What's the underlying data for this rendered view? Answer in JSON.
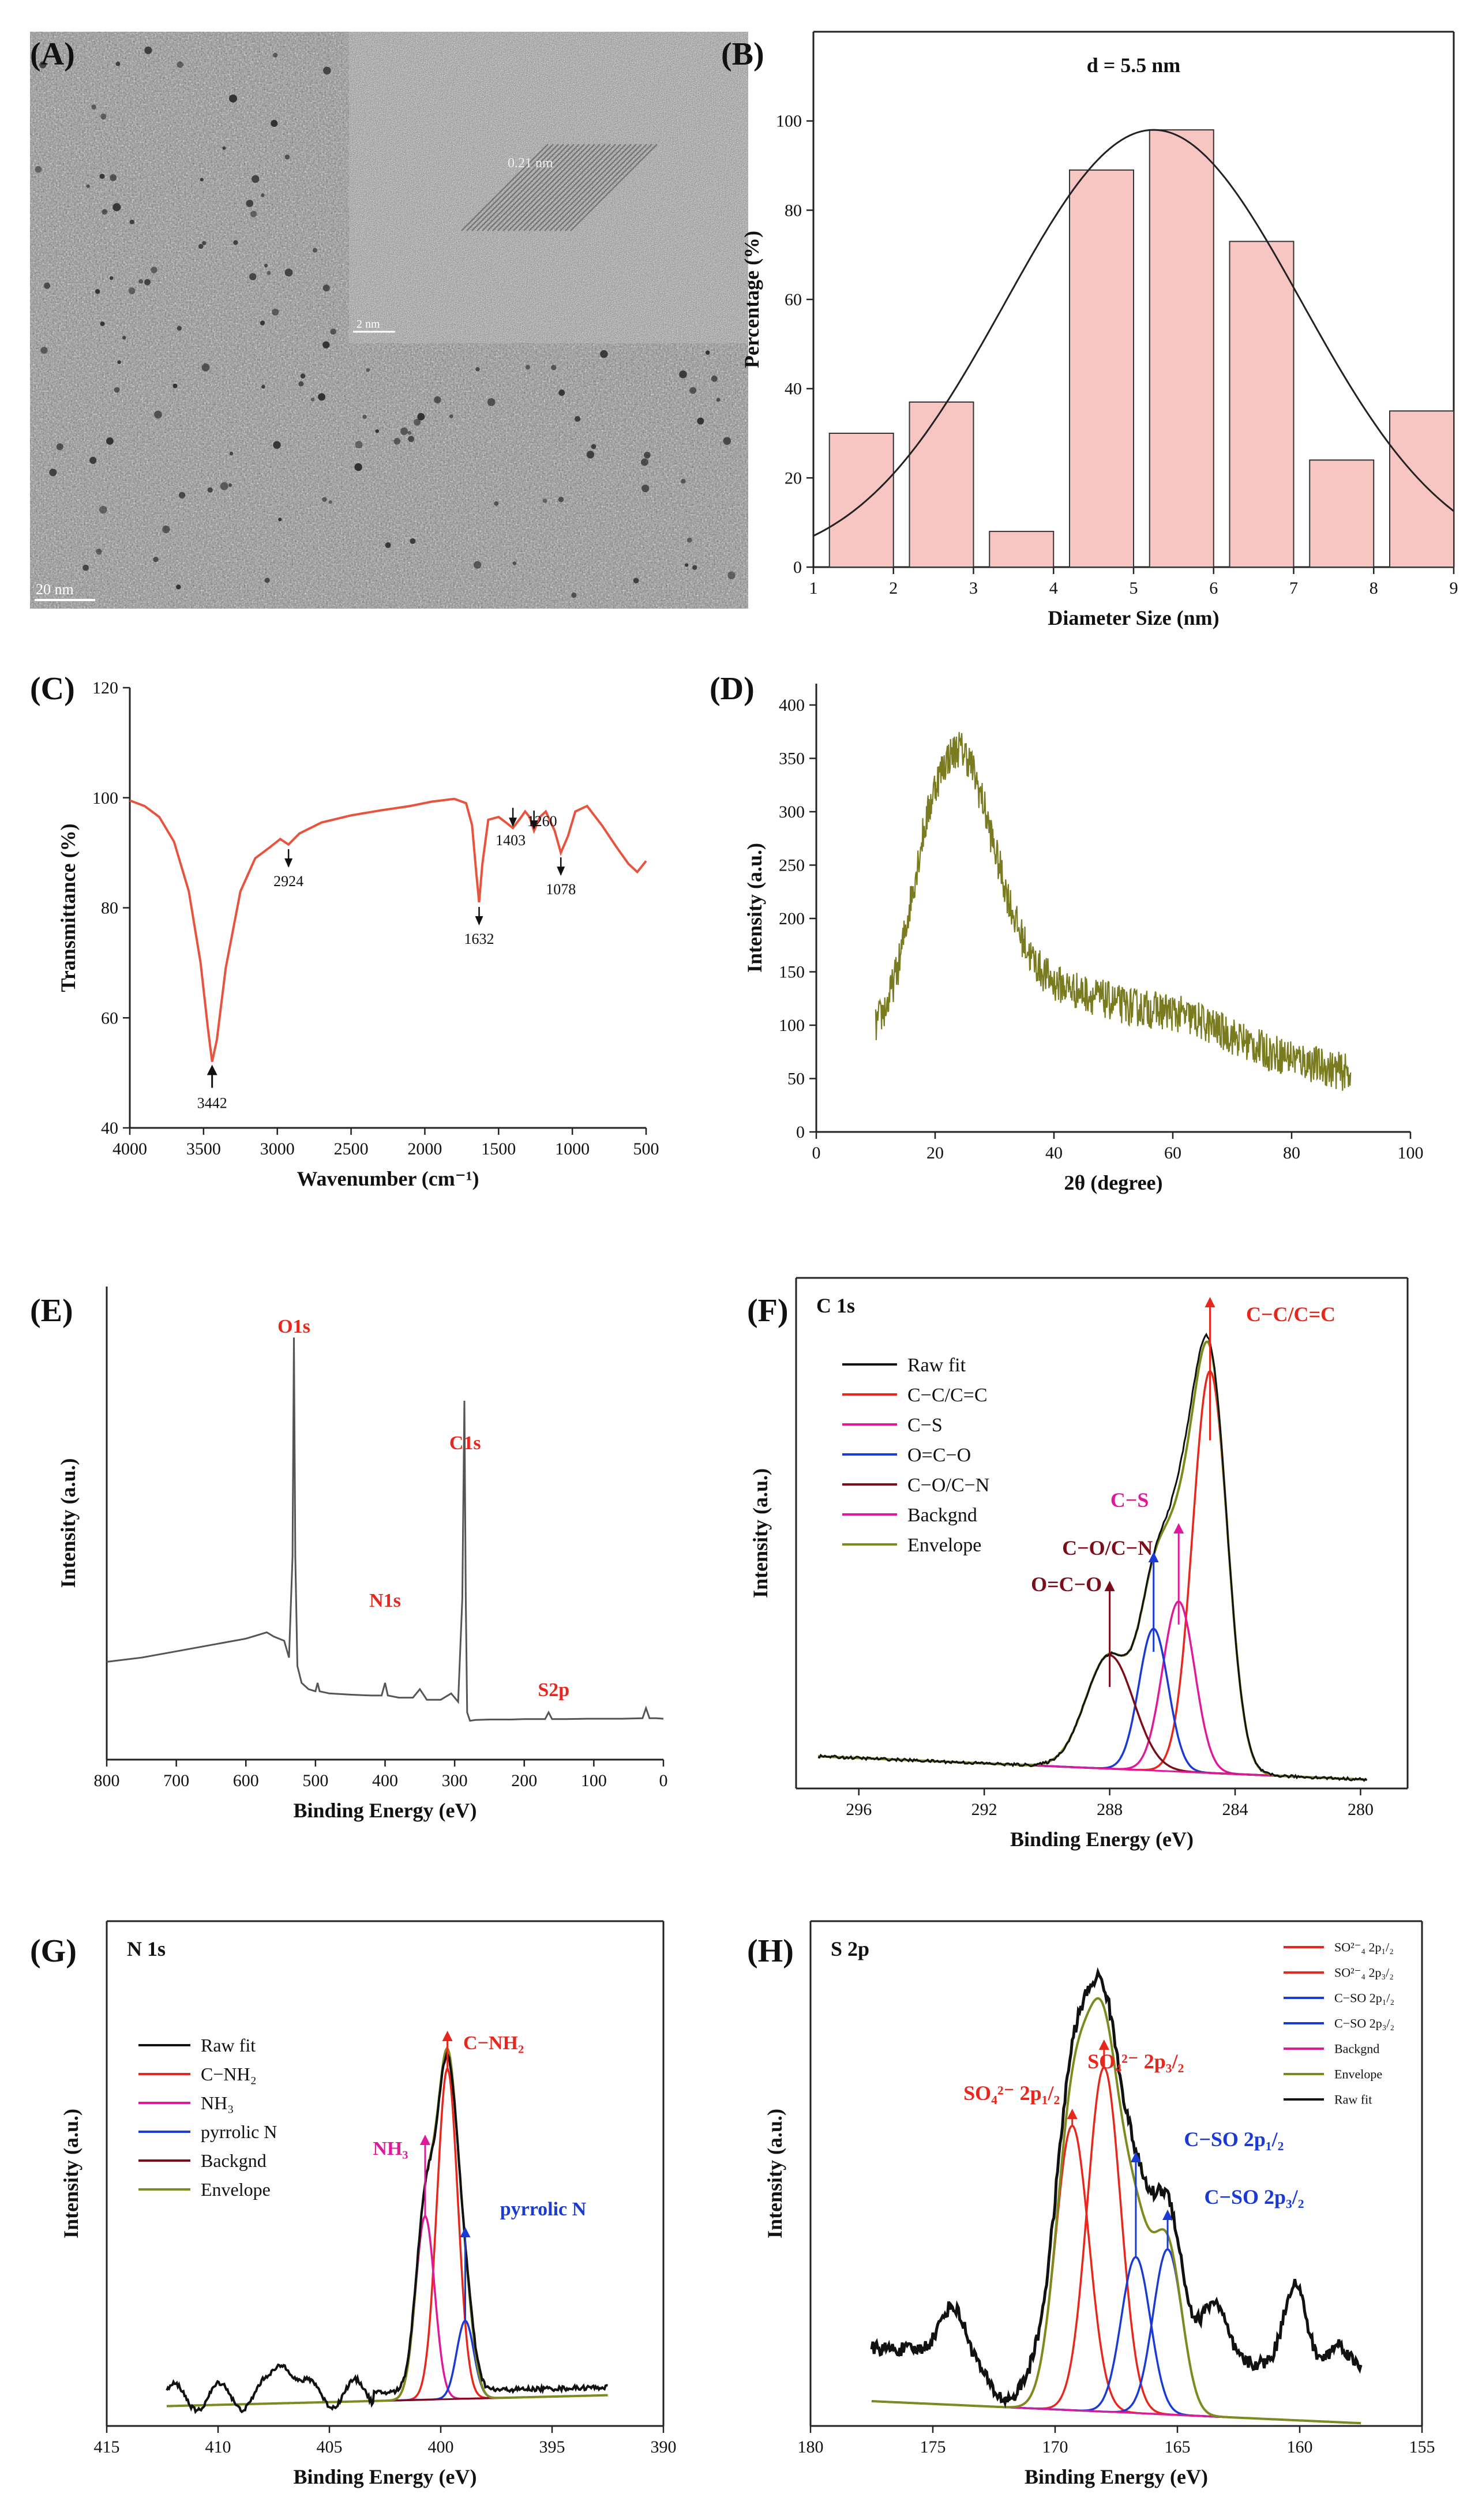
{
  "panel_labels": [
    "(A)",
    "(B)",
    "(C)",
    "(D)",
    "(E)",
    "(F)",
    "(G)",
    "(H)"
  ],
  "tem": {
    "scale_bar": "20 nm",
    "inset_scale": "2 nm",
    "lattice_label": "0.21 nm"
  },
  "colors": {
    "pink_bar": "#f7c6c3",
    "bar_edge": "#333333",
    "ftir": "#e8533d",
    "xrd": "#7a7a1e",
    "xps_survey": "#555555",
    "red": "#e8261c",
    "magenta": "#e0189a",
    "blue": "#1a3ad6",
    "darkred": "#7b0c18",
    "olive": "#7f8a1e",
    "black": "#111111"
  },
  "chart_data": [
    {
      "panel": "B",
      "type": "bar",
      "title": "d = 5.5 nm",
      "xlabel": "Diameter Size  (nm)",
      "ylabel": "Percentage  (%)",
      "xlim": [
        1,
        9
      ],
      "ylim": [
        0,
        120
      ],
      "xticks": [
        1,
        2,
        3,
        4,
        5,
        6,
        7,
        8,
        9
      ],
      "yticks": [
        0,
        20,
        40,
        60,
        80,
        100
      ],
      "bars": [
        {
          "x0": 1.2,
          "x1": 2.0,
          "value": 30
        },
        {
          "x0": 2.2,
          "x1": 3.0,
          "value": 37
        },
        {
          "x0": 3.2,
          "x1": 4.0,
          "value": 8
        },
        {
          "x0": 4.2,
          "x1": 5.0,
          "value": 89
        },
        {
          "x0": 5.2,
          "x1": 6.0,
          "value": 98
        },
        {
          "x0": 6.2,
          "x1": 7.0,
          "value": 73
        },
        {
          "x0": 7.2,
          "x1": 8.0,
          "value": 24
        },
        {
          "x0": 8.2,
          "x1": 9.0,
          "value": 35
        }
      ],
      "fit": {
        "center": 5.25,
        "amplitude": 98,
        "sigma": 1.85
      }
    },
    {
      "panel": "C",
      "type": "line",
      "xlabel": "Wavenumber (cm⁻¹)",
      "ylabel": "Transmittance (%)",
      "xlim": [
        4000,
        500
      ],
      "ylim": [
        40,
        120
      ],
      "xticks": [
        4000,
        3500,
        3000,
        2500,
        2000,
        1500,
        1000,
        500
      ],
      "yticks": [
        40,
        60,
        80,
        100,
        120
      ],
      "x": [
        4000,
        3900,
        3800,
        3700,
        3600,
        3520,
        3470,
        3442,
        3410,
        3350,
        3250,
        3150,
        3050,
        2980,
        2924,
        2850,
        2700,
        2500,
        2300,
        2100,
        1950,
        1800,
        1720,
        1680,
        1650,
        1632,
        1610,
        1570,
        1500,
        1450,
        1403,
        1360,
        1320,
        1290,
        1260,
        1220,
        1180,
        1120,
        1078,
        1030,
        980,
        900,
        800,
        700,
        620,
        560,
        500
      ],
      "y": [
        99.5,
        98.5,
        96.5,
        92,
        83,
        70,
        58,
        52,
        56,
        69,
        83,
        89,
        91,
        92.5,
        91.5,
        93.5,
        95.5,
        96.8,
        97.7,
        98.5,
        99.3,
        99.8,
        99,
        95,
        86,
        81,
        88,
        96,
        96.5,
        95.5,
        94.5,
        96,
        97.5,
        96.5,
        94,
        96.5,
        97.5,
        94,
        90,
        93,
        97.5,
        98.5,
        95,
        91,
        88,
        86.5,
        88.5
      ],
      "annotations": [
        {
          "label": "3442",
          "x": 3442,
          "y": 52
        },
        {
          "label": "2924",
          "x": 2924,
          "y": 91.5
        },
        {
          "label": "1632",
          "x": 1632,
          "y": 81
        },
        {
          "label": "1403",
          "x": 1403,
          "y": 94.5
        },
        {
          "label": "1260",
          "x": 1260,
          "y": 94
        },
        {
          "label": "1078",
          "x": 1078,
          "y": 90
        }
      ]
    },
    {
      "panel": "D",
      "type": "line",
      "xlabel": "2θ (degree)",
      "ylabel": "Intensity (a.u.)",
      "xlim": [
        0,
        100
      ],
      "ylim": [
        0,
        420
      ],
      "xticks": [
        0,
        20,
        40,
        60,
        80,
        100
      ],
      "yticks": [
        0,
        50,
        100,
        150,
        200,
        250,
        300,
        350,
        400
      ],
      "x": [
        10,
        12,
        14,
        16,
        18,
        20,
        22,
        24,
        25,
        26,
        28,
        30,
        32,
        34,
        36,
        38,
        40,
        44,
        48,
        52,
        56,
        60,
        64,
        68,
        72,
        76,
        80,
        84,
        88,
        90
      ],
      "y": [
        100,
        120,
        160,
        220,
        280,
        325,
        350,
        360,
        355,
        345,
        310,
        265,
        225,
        190,
        165,
        150,
        140,
        132,
        125,
        118,
        115,
        112,
        105,
        95,
        85,
        75,
        70,
        63,
        57,
        55
      ],
      "noise_amplitude": 18
    },
    {
      "panel": "E",
      "type": "line",
      "xlabel": "Binding Energy (eV)",
      "ylabel": "Intensity (a.u.)",
      "xlim": [
        800,
        0
      ],
      "ylim": [
        0,
        1
      ],
      "xticks": [
        800,
        700,
        600,
        500,
        400,
        300,
        200,
        100,
        0
      ],
      "x": [
        800,
        750,
        700,
        650,
        600,
        570,
        560,
        545,
        538,
        533,
        531,
        529,
        526,
        520,
        510,
        500,
        497,
        494,
        480,
        450,
        420,
        405,
        400,
        396,
        380,
        360,
        350,
        340,
        320,
        305,
        295,
        289,
        286,
        284,
        282,
        278,
        270,
        250,
        220,
        200,
        170,
        165,
        160,
        140,
        110,
        90,
        60,
        30,
        25,
        20,
        10,
        0
      ],
      "y": [
        0.15,
        0.16,
        0.175,
        0.19,
        0.205,
        0.22,
        0.21,
        0.2,
        0.16,
        0.4,
        0.92,
        0.4,
        0.14,
        0.1,
        0.085,
        0.08,
        0.1,
        0.08,
        0.075,
        0.072,
        0.07,
        0.07,
        0.1,
        0.07,
        0.065,
        0.065,
        0.085,
        0.06,
        0.06,
        0.075,
        0.055,
        0.3,
        0.77,
        0.3,
        0.03,
        0.01,
        0.012,
        0.013,
        0.013,
        0.014,
        0.014,
        0.03,
        0.014,
        0.014,
        0.015,
        0.015,
        0.015,
        0.016,
        0.04,
        0.016,
        0.016,
        0.015
      ],
      "annotations": [
        {
          "label": "O1s",
          "x": 531
        },
        {
          "label": "C1s",
          "x": 285
        },
        {
          "label": "N1s",
          "x": 400
        },
        {
          "label": "S2p",
          "x": 166
        }
      ]
    },
    {
      "panel": "F",
      "type": "line",
      "title": "C 1s",
      "xlabel": "Binding Energy (eV)",
      "ylabel": "Intensity (a.u.)",
      "xlim": [
        298,
        278.5
      ],
      "ylim": [
        0,
        1.08
      ],
      "xticks": [
        296,
        292,
        288,
        284,
        280
      ],
      "legend": [
        "Raw fit",
        "C−C/C=C",
        "C−S",
        "O=C−O",
        "C−O/C−N",
        "Backgnd",
        "Envelope"
      ],
      "peaks": [
        {
          "label": "C−C/C=C",
          "center": 284.8,
          "height": 0.85,
          "fwhm": 1.3
        },
        {
          "label": "C−S",
          "center": 285.8,
          "height": 0.36,
          "fwhm": 1.2
        },
        {
          "label": "C−O/C−N",
          "center": 286.6,
          "height": 0.3,
          "fwhm": 1.1
        },
        {
          "label": "O=C−O",
          "center": 288.0,
          "height": 0.24,
          "fwhm": 1.8
        }
      ],
      "background": {
        "start": 0.07,
        "end": 0.015
      },
      "annotations": [
        "C−C/C=C",
        "C−S",
        "C−O/C−N",
        "O=C−O"
      ]
    },
    {
      "panel": "G",
      "type": "line",
      "title": "N 1s",
      "xlabel": "Binding Energy (eV)",
      "ylabel": "Intensity (a.u.)",
      "xlim": [
        415,
        390
      ],
      "ylim": [
        0,
        1.1
      ],
      "xticks": [
        415,
        410,
        405,
        400,
        395,
        390
      ],
      "legend": [
        "Raw fit",
        "C−NH₂",
        "NH₃",
        "pyrrolic N",
        "Backgnd",
        "Envelope"
      ],
      "peaks": [
        {
          "label": "C−NH₂",
          "center": 399.7,
          "height": 0.72,
          "fwhm": 1.1
        },
        {
          "label": "NH₃",
          "center": 400.7,
          "height": 0.4,
          "fwhm": 1.0
        },
        {
          "label": "pyrrolic N",
          "center": 398.9,
          "height": 0.17,
          "fwhm": 0.9
        }
      ],
      "background": {
        "start": 0.04,
        "end": 0.07
      },
      "annotations": [
        "C−NH₂",
        "NH₃",
        "pyrrolic N"
      ]
    },
    {
      "panel": "H",
      "type": "line",
      "title": "S 2p",
      "xlabel": "Binding Energy (eV)",
      "ylabel": "Intensity (a.u.)",
      "xlim": [
        180,
        155
      ],
      "ylim": [
        0,
        1.1
      ],
      "xticks": [
        180,
        175,
        170,
        165,
        160,
        155
      ],
      "legend": [
        "SO²⁻₄ 2p₁/₂",
        "SO²⁻₄ 2p₃/₂",
        "C−SO 2p₁/₂",
        "C−SO 2p₃/₂",
        "Backgnd",
        "Envelope",
        "Raw fit"
      ],
      "peaks": [
        {
          "label": "SO₄²⁻ 2p₁/₂",
          "center": 169.3,
          "height": 0.62,
          "fwhm": 1.6
        },
        {
          "label": "SO₄²⁻ 2p₃/₂",
          "center": 168.0,
          "height": 0.75,
          "fwhm": 1.6
        },
        {
          "label": "C−SO 2p₁/₂",
          "center": 166.7,
          "height": 0.34,
          "fwhm": 1.4
        },
        {
          "label": "C−SO 2p₃/₂",
          "center": 165.4,
          "height": 0.36,
          "fwhm": 1.4
        }
      ],
      "background": {
        "start": 0.06,
        "end": 0.0
      },
      "annotations": [
        "SO₄²⁻ 2p₁/₂",
        "SO₄²⁻ 2p₃/₂",
        "C−SO 2p₁/₂",
        "C−SO 2p₃/₂"
      ]
    }
  ]
}
